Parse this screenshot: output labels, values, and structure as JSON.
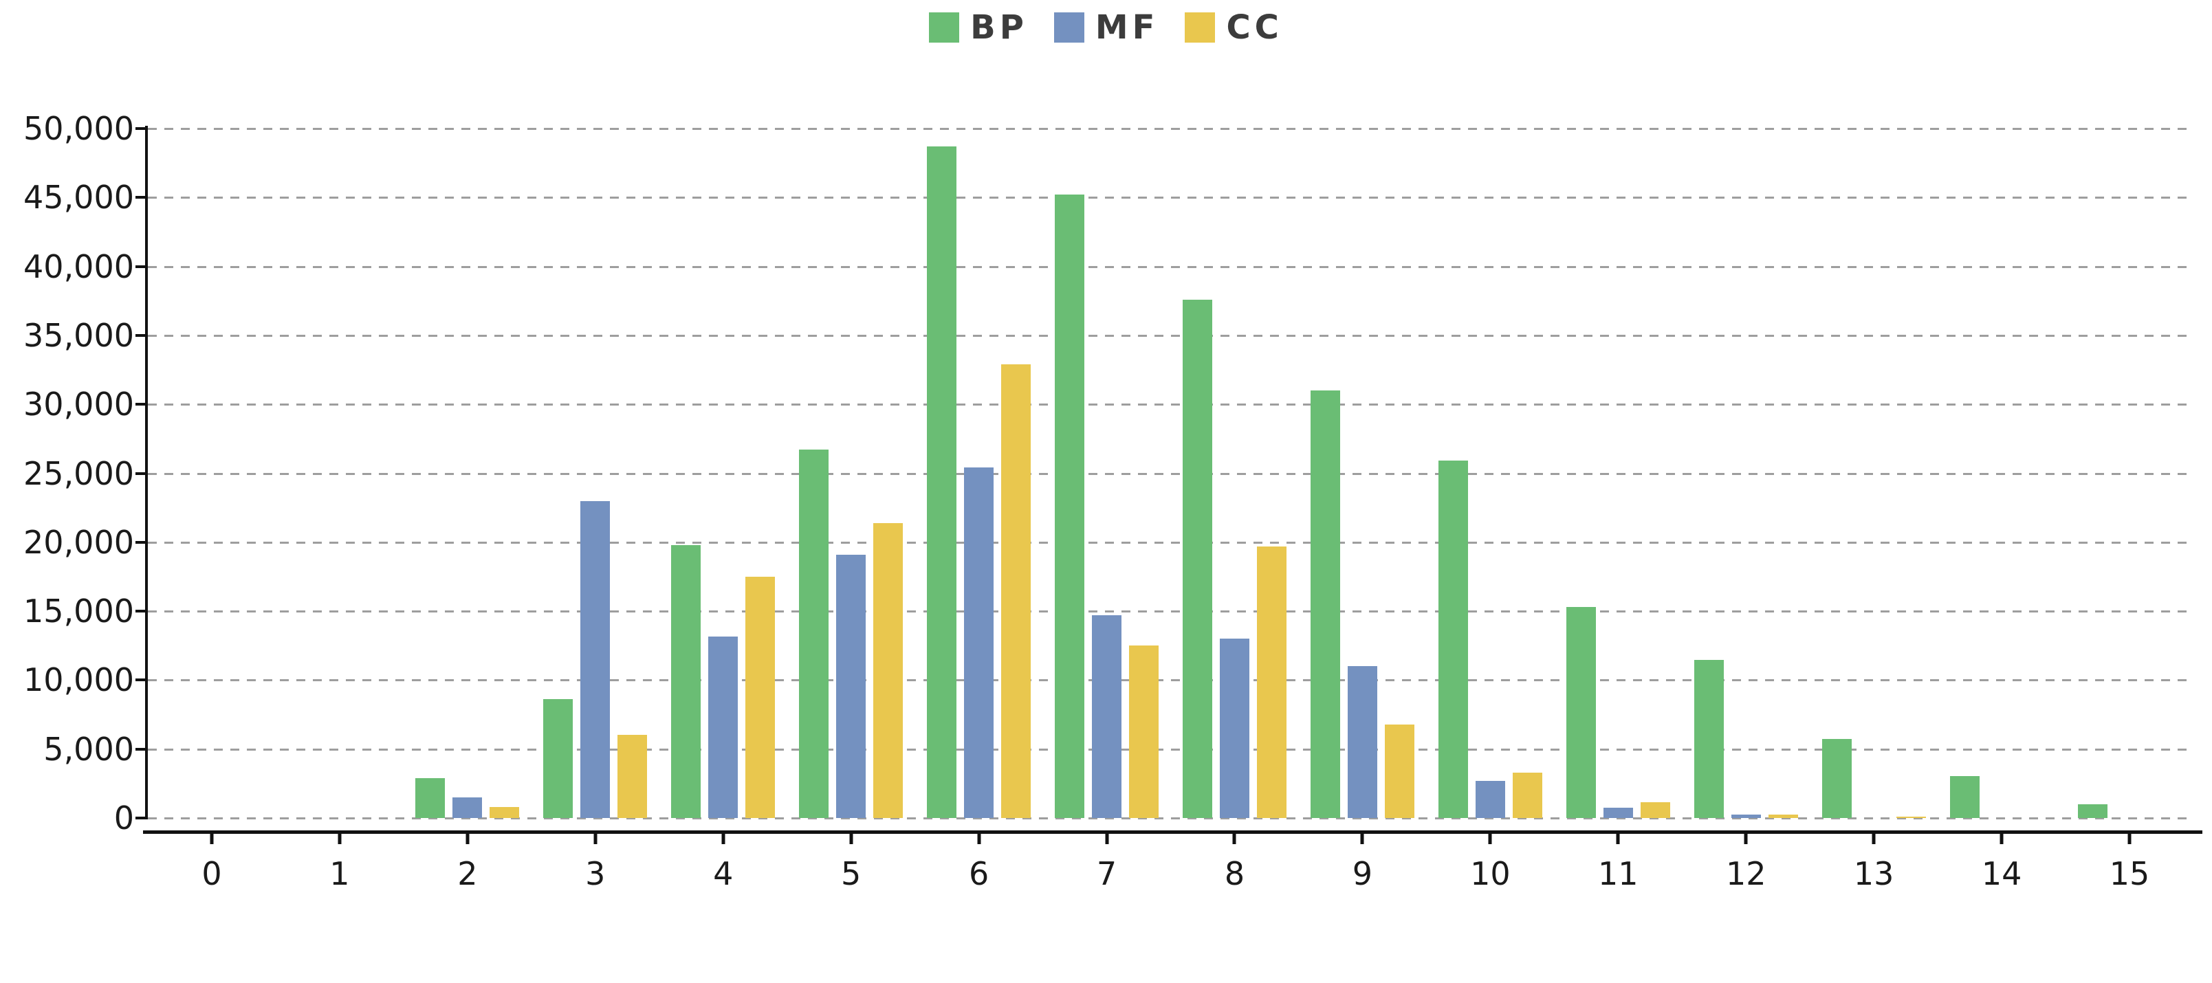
{
  "legend": {
    "position": "top-center",
    "items": [
      {
        "label": "BP",
        "color": "#6abd74"
      },
      {
        "label": "MF",
        "color": "#7491c0"
      },
      {
        "label": "CC",
        "color": "#e9c74e"
      }
    ]
  },
  "colors": {
    "background": "#ffffff",
    "grid": "#9e9e9e",
    "axis": "#111111",
    "tick_text": "#1a1a1a",
    "legend_text": "#3c3c3c"
  },
  "chart_data": {
    "type": "bar",
    "title": "",
    "xlabel": "",
    "ylabel": "",
    "categories": [
      "0",
      "1",
      "2",
      "3",
      "4",
      "5",
      "6",
      "7",
      "8",
      "9",
      "10",
      "11",
      "12",
      "13",
      "14",
      "15"
    ],
    "series": [
      {
        "name": "BP",
        "color": "#6abd74",
        "values": [
          0,
          0,
          2900,
          8600,
          19800,
          26700,
          48700,
          45200,
          37600,
          31000,
          25900,
          15300,
          11450,
          5750,
          3050,
          1000
        ]
      },
      {
        "name": "MF",
        "color": "#7491c0",
        "values": [
          0,
          0,
          1500,
          23000,
          13150,
          19100,
          25400,
          14700,
          13000,
          11000,
          2700,
          750,
          250,
          0,
          0,
          0
        ]
      },
      {
        "name": "CC",
        "color": "#e9c74e",
        "values": [
          0,
          0,
          800,
          6050,
          17500,
          21400,
          32900,
          12500,
          19700,
          6800,
          3300,
          1150,
          250,
          100,
          0,
          0
        ]
      }
    ],
    "ylim": [
      0,
      50000
    ],
    "ytick_step": 5000,
    "y_ticks": [
      "0",
      "5,000",
      "10,000",
      "15,000",
      "20,000",
      "25,000",
      "30,000",
      "35,000",
      "40,000",
      "45,000",
      "50,000"
    ],
    "grid": true,
    "grid_style": "dashed",
    "legend_position": "top"
  }
}
